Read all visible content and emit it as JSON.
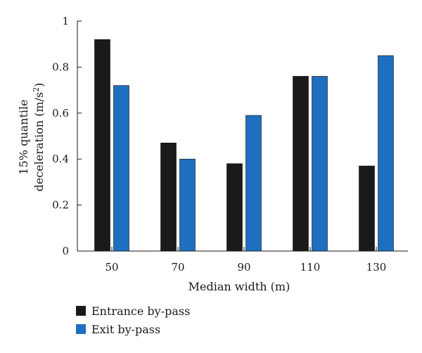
{
  "chart_data": {
    "type": "bar",
    "title": "",
    "xlabel": "Median width (m)",
    "ylabel_line1": "15% quantile",
    "ylabel_line2": "deceleration (m/s",
    "ylabel_sup": "2",
    "ylabel_close": ")",
    "ylim": [
      0,
      1
    ],
    "yticks": [
      "0",
      "0.2",
      "0.4",
      "0.6",
      "0.8",
      "1"
    ],
    "categories": [
      "50",
      "70",
      "90",
      "110",
      "130"
    ],
    "series": [
      {
        "name": "Entrance by-pass",
        "color": "#1a1a1a",
        "values": [
          0.92,
          0.47,
          0.38,
          0.76,
          0.37
        ]
      },
      {
        "name": "Exit by-pass",
        "color": "#1f6fc0",
        "values": [
          0.72,
          0.4,
          0.59,
          0.76,
          0.85
        ]
      }
    ],
    "legend_position": "bottom-left",
    "grid": false
  }
}
